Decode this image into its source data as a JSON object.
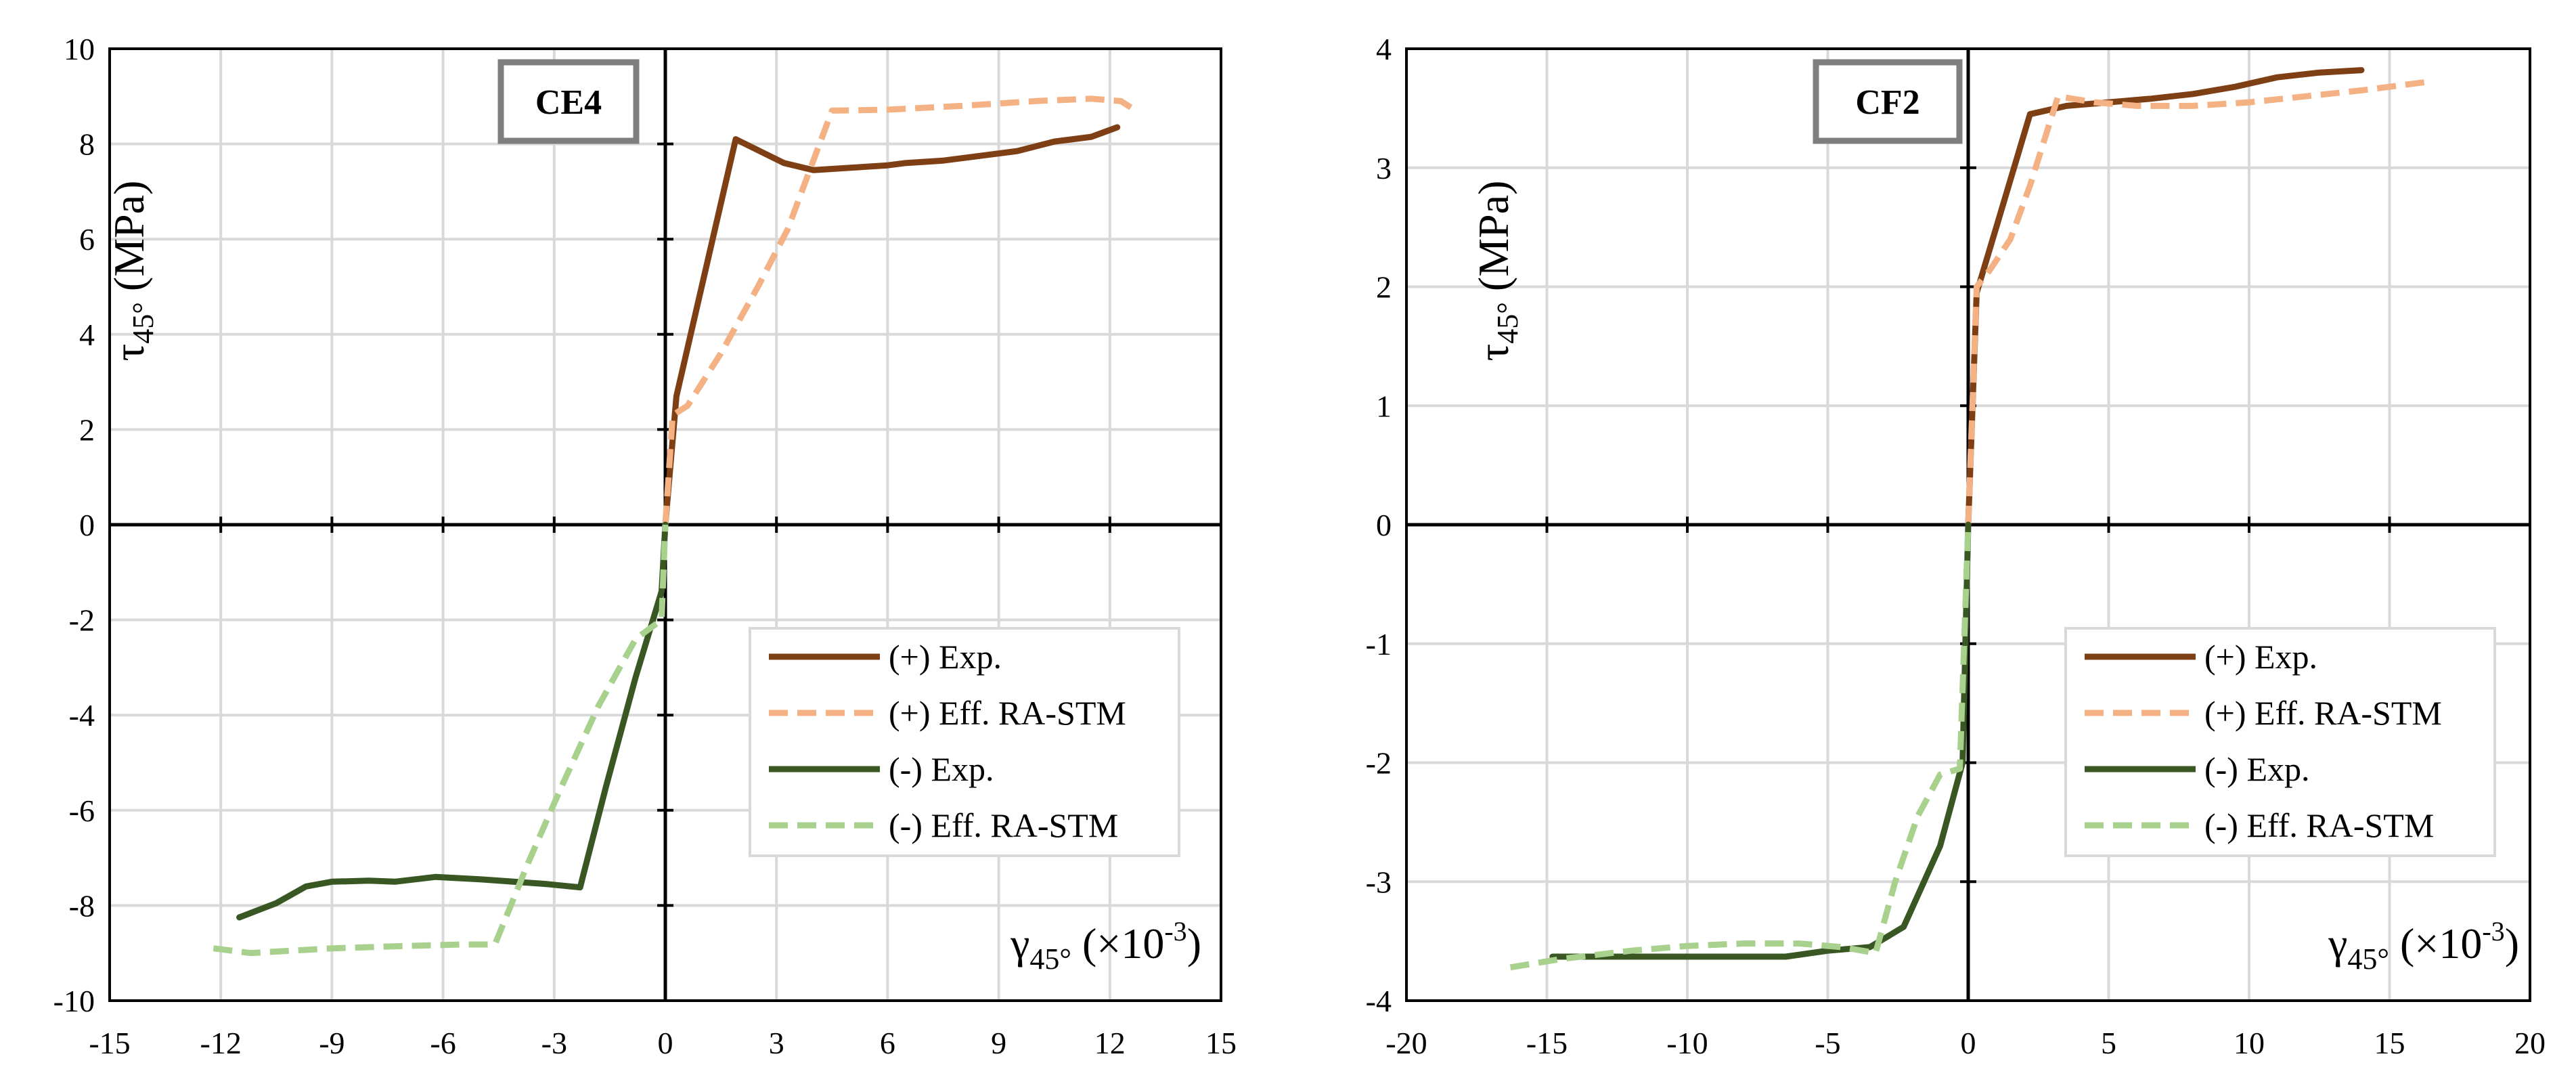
{
  "colors": {
    "pos_exp": "#7f3f14",
    "pos_stm": "#f4b183",
    "neg_exp": "#385723",
    "neg_stm": "#a9d18e",
    "grid": "#d9d9d9",
    "frame": "#000000",
    "title_border": "#7f7f7f"
  },
  "chart_data": [
    {
      "type": "line",
      "title": "CE4",
      "xlabel": {
        "main": "γ",
        "sub": "45°",
        "rest": " (×10",
        "sup": "-3",
        "close": ")"
      },
      "ylabel": {
        "main": "τ",
        "sub": "45°",
        "rest": " (MPa)"
      },
      "xlim": [
        -15,
        15
      ],
      "ylim": [
        -10,
        10
      ],
      "xticks": [
        -15,
        -12,
        -9,
        -6,
        -3,
        0,
        3,
        6,
        9,
        12,
        15
      ],
      "yticks": [
        -10,
        -8,
        -6,
        -4,
        -2,
        0,
        2,
        4,
        6,
        8,
        10
      ],
      "legend": "bottom-right",
      "series": [
        {
          "name": "(+) Exp.",
          "style": "solid",
          "color_key": "pos_exp",
          "points": [
            [
              0,
              0
            ],
            [
              0.3,
              2.7
            ],
            [
              1.9,
              8.1
            ],
            [
              3.2,
              7.6
            ],
            [
              4,
              7.45
            ],
            [
              5,
              7.5
            ],
            [
              6,
              7.55
            ],
            [
              6.5,
              7.6
            ],
            [
              7.5,
              7.65
            ],
            [
              8.5,
              7.75
            ],
            [
              9.5,
              7.85
            ],
            [
              10.5,
              8.05
            ],
            [
              11.5,
              8.15
            ],
            [
              12.2,
              8.35
            ]
          ]
        },
        {
          "name": "(+) Eff. RA-STM",
          "style": "dashed",
          "color_key": "pos_stm",
          "points": [
            [
              0,
              0
            ],
            [
              0.2,
              2.3
            ],
            [
              0.6,
              2.5
            ],
            [
              1.5,
              3.6
            ],
            [
              2.5,
              5.0
            ],
            [
              3.3,
              6.2
            ],
            [
              4.5,
              8.7
            ],
            [
              6,
              8.72
            ],
            [
              8,
              8.8
            ],
            [
              10,
              8.9
            ],
            [
              11.5,
              8.95
            ],
            [
              12.3,
              8.9
            ],
            [
              12.6,
              8.75
            ]
          ]
        },
        {
          "name": "(-) Exp.",
          "style": "solid",
          "color_key": "neg_exp",
          "points": [
            [
              -11.5,
              -8.25
            ],
            [
              -10.5,
              -7.95
            ],
            [
              -9.7,
              -7.6
            ],
            [
              -9,
              -7.5
            ],
            [
              -8,
              -7.48
            ],
            [
              -7.3,
              -7.5
            ],
            [
              -6.2,
              -7.4
            ],
            [
              -5,
              -7.45
            ],
            [
              -3.2,
              -7.55
            ],
            [
              -2.3,
              -7.62
            ],
            [
              -1.6,
              -5.5
            ],
            [
              -0.8,
              -3.2
            ],
            [
              -0.1,
              -1.4
            ],
            [
              0,
              0
            ]
          ]
        },
        {
          "name": "(-) Eff. RA-STM",
          "style": "dashed",
          "color_key": "neg_stm",
          "points": [
            [
              -12.2,
              -8.9
            ],
            [
              -11.2,
              -9.0
            ],
            [
              -9,
              -8.9
            ],
            [
              -7,
              -8.85
            ],
            [
              -5.5,
              -8.82
            ],
            [
              -4.6,
              -8.82
            ],
            [
              -3.7,
              -7.1
            ],
            [
              -2.8,
              -5.5
            ],
            [
              -1.8,
              -3.8
            ],
            [
              -0.8,
              -2.4
            ],
            [
              -0.1,
              -2.0
            ],
            [
              0,
              0
            ]
          ]
        }
      ]
    },
    {
      "type": "line",
      "title": "CF2",
      "xlabel": {
        "main": "γ",
        "sub": "45°",
        "rest": " (×10",
        "sup": "-3",
        "close": ")"
      },
      "ylabel": {
        "main": "τ",
        "sub": "45°",
        "rest": " (MPa)"
      },
      "xlim": [
        -20,
        20
      ],
      "ylim": [
        -4,
        4
      ],
      "xticks": [
        -20,
        -15,
        -10,
        -5,
        0,
        5,
        10,
        15,
        20
      ],
      "yticks": [
        -4,
        -3,
        -2,
        -1,
        0,
        1,
        2,
        3,
        4
      ],
      "legend": "bottom-right",
      "series": [
        {
          "name": "(+) Exp.",
          "style": "solid",
          "color_key": "pos_exp",
          "points": [
            [
              0,
              0
            ],
            [
              0.3,
              1.95
            ],
            [
              1,
              2.5
            ],
            [
              2.2,
              3.45
            ],
            [
              3.5,
              3.52
            ],
            [
              5,
              3.55
            ],
            [
              6.5,
              3.58
            ],
            [
              8,
              3.62
            ],
            [
              9.5,
              3.68
            ],
            [
              11,
              3.76
            ],
            [
              12.5,
              3.8
            ],
            [
              14,
              3.82
            ]
          ]
        },
        {
          "name": "(+) Eff. RA-STM",
          "style": "dashed",
          "color_key": "pos_stm",
          "points": [
            [
              0,
              0
            ],
            [
              0.3,
              2.0
            ],
            [
              0.8,
              2.15
            ],
            [
              1.5,
              2.4
            ],
            [
              2.2,
              2.85
            ],
            [
              3.2,
              3.6
            ],
            [
              4.5,
              3.55
            ],
            [
              6,
              3.52
            ],
            [
              8,
              3.52
            ],
            [
              10,
              3.55
            ],
            [
              12,
              3.6
            ],
            [
              14,
              3.65
            ],
            [
              16.3,
              3.72
            ]
          ]
        },
        {
          "name": "(-) Exp.",
          "style": "solid",
          "color_key": "neg_exp",
          "points": [
            [
              -14.8,
              -3.63
            ],
            [
              -12,
              -3.63
            ],
            [
              -9,
              -3.63
            ],
            [
              -6.5,
              -3.63
            ],
            [
              -5,
              -3.58
            ],
            [
              -3.5,
              -3.55
            ],
            [
              -2.3,
              -3.38
            ],
            [
              -1,
              -2.7
            ],
            [
              -0.2,
              -2.0
            ],
            [
              0,
              0
            ]
          ]
        },
        {
          "name": "(-) Eff. RA-STM",
          "style": "dashed",
          "color_key": "neg_stm",
          "points": [
            [
              -16.3,
              -3.72
            ],
            [
              -14.5,
              -3.65
            ],
            [
              -12,
              -3.58
            ],
            [
              -10,
              -3.54
            ],
            [
              -8,
              -3.52
            ],
            [
              -6,
              -3.52
            ],
            [
              -4.5,
              -3.55
            ],
            [
              -3.3,
              -3.6
            ],
            [
              -2.6,
              -3.0
            ],
            [
              -1.8,
              -2.45
            ],
            [
              -1,
              -2.1
            ],
            [
              -0.3,
              -2.05
            ],
            [
              0,
              0
            ]
          ]
        }
      ]
    }
  ]
}
